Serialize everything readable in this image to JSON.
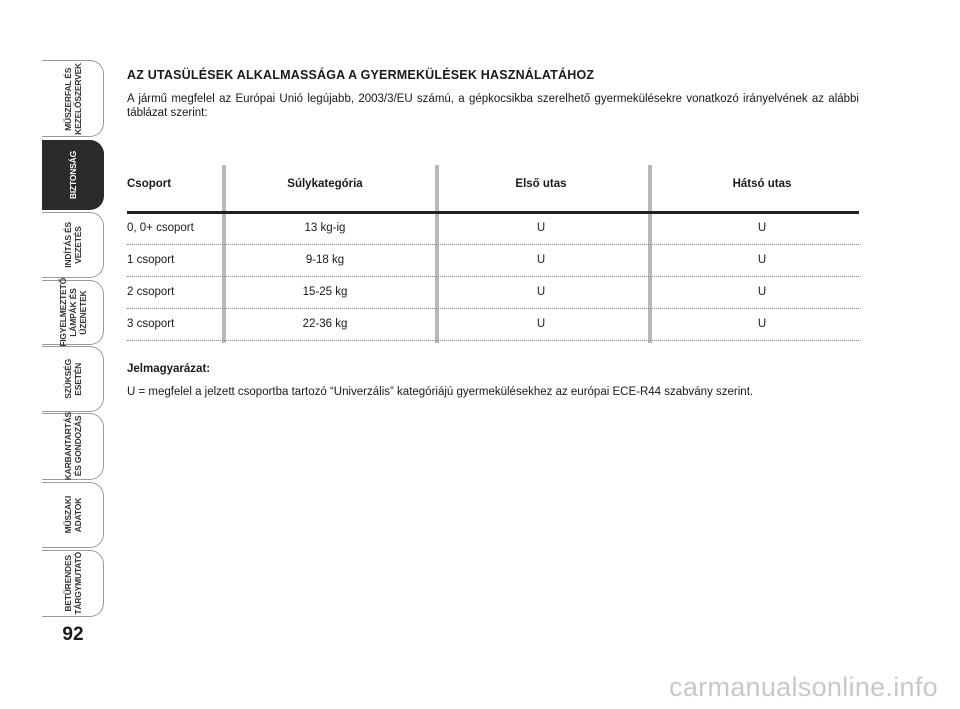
{
  "sidebar": {
    "tabs": [
      {
        "lines": [
          "MŰSZERFAL ÉS",
          "KEZELŐSZERVEK"
        ],
        "active": false
      },
      {
        "lines": [
          "BIZTONSÁG"
        ],
        "active": true
      },
      {
        "lines": [
          "INDÍTÁS ÉS",
          "VEZETÉS"
        ],
        "active": false
      },
      {
        "lines": [
          "FIGYELMEZTETŐ",
          "LÁMPÁK ÉS",
          "ÜZENETEK"
        ],
        "active": false
      },
      {
        "lines": [
          "SZÜKSÉG",
          "ESETÉN"
        ],
        "active": false
      },
      {
        "lines": [
          "KARBANTARTÁS",
          "ÉS GONDOZÁS"
        ],
        "active": false
      },
      {
        "lines": [
          "MŰSZAKI",
          "ADATOK"
        ],
        "active": false
      },
      {
        "lines": [
          "BETŰRENDES",
          "TÁRGYMUTATÓ"
        ],
        "active": false
      }
    ]
  },
  "page_number": "92",
  "title": "AZ UTASÜLÉSEK ALKALMASSÁGA A GYERMEKÜLÉSEK HASZNÁLATÁHOZ",
  "intro": "A jármű megfelel az Európai Unió legújabb, 2003/3/EU számú, a gépkocsikba szerelhető gyermekülésekre vonatkozó irányelvének az alábbi táblázat szerint:",
  "table": {
    "header": [
      "Csoport",
      "Súlykategória",
      "Első utas",
      "Hátsó utas"
    ],
    "rows": [
      [
        "0, 0+ csoport",
        "13 kg-ig",
        "U",
        "U"
      ],
      [
        "1 csoport",
        "9-18 kg",
        "U",
        "U"
      ],
      [
        "2 csoport",
        "15-25 kg",
        "U",
        "U"
      ],
      [
        "3 csoport",
        "22-36 kg",
        "U",
        "U"
      ]
    ]
  },
  "legend": {
    "title": "Jelmagyarázat:",
    "text": "U = megfelel a jelzett csoportba tartozó “Univerzális” kategóriájú gyermekülésekhez az európai ECE-R44 szabvány szerint."
  },
  "watermark": "carmanualsonline.info"
}
